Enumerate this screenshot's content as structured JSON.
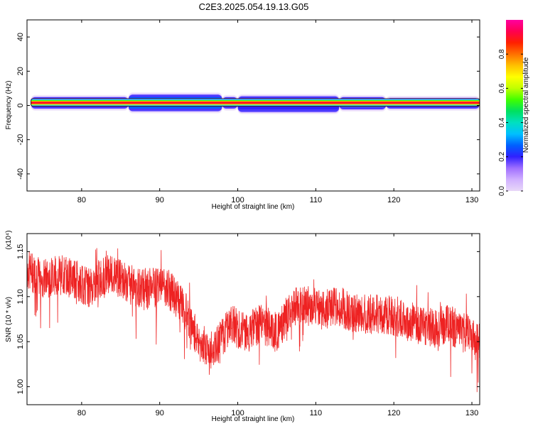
{
  "figure_title": "C2E3.2025.054.19.13.G05",
  "colors": {
    "snr_line": "#ee2222",
    "frame": "#000000",
    "colormap": [
      "#e8d8f8",
      "#d0b0ff",
      "#a070ff",
      "#3020ff",
      "#0060ff",
      "#00c0ff",
      "#00e0c0",
      "#00e060",
      "#40ff00",
      "#c0ff00",
      "#ffff00",
      "#ffc000",
      "#ff7000",
      "#ff2000",
      "#ff0050",
      "#ff00a0"
    ]
  },
  "chart_data": [
    {
      "type": "heatmap",
      "xlabel": "Height of straight line (km)",
      "ylabel": "Frequency (Hz)",
      "xlim": [
        73,
        131
      ],
      "ylim": [
        -50,
        50
      ],
      "xticks": [
        80,
        90,
        100,
        110,
        120,
        130
      ],
      "yticks": [
        -40,
        -20,
        0,
        20,
        40
      ],
      "colorbar": {
        "label": "Normalized spectral amplitude",
        "range": [
          0,
          1
        ],
        "ticks": [
          "0.0",
          "0.2",
          "0.4",
          "0.6",
          "0.8"
        ]
      },
      "band": {
        "x_range": [
          73.5,
          131
        ],
        "core_freq": [
          0.5,
          3
        ],
        "segments": [
          {
            "x0": 73.5,
            "x1": 86,
            "ymin": -1.5,
            "ymax": 4.5,
            "level": 0.9
          },
          {
            "x0": 86,
            "x1": 98,
            "ymin": -3,
            "ymax": 6,
            "level": 0.5
          },
          {
            "x0": 98,
            "x1": 100,
            "ymin": -1.5,
            "ymax": 4.5,
            "level": 0.9
          },
          {
            "x0": 100,
            "x1": 113,
            "ymin": -3.5,
            "ymax": 5,
            "level": 0.45
          },
          {
            "x0": 113,
            "x1": 119,
            "ymin": -2,
            "ymax": 4.5,
            "level": 0.8
          },
          {
            "x0": 119,
            "x1": 131,
            "ymin": -1.5,
            "ymax": 4,
            "level": 0.9
          }
        ]
      }
    },
    {
      "type": "line",
      "xlabel": "Height of straight line (km)",
      "ylabel": "SNR (10 * v/v)",
      "scale_label": "(x10⁴)",
      "xlim": [
        73,
        131
      ],
      "ylim": [
        0.98,
        1.17
      ],
      "xticks": [
        80,
        90,
        100,
        110,
        120,
        130
      ],
      "yticks": [
        "1.00",
        "1.05",
        "1.10",
        "1.15"
      ],
      "series": [
        {
          "x": [
            73,
            75,
            77,
            79,
            81,
            83,
            85,
            87,
            89,
            91,
            93,
            95,
            97,
            99,
            101,
            103,
            105,
            107,
            109,
            111,
            113,
            115,
            117,
            119,
            121,
            123,
            125,
            127,
            129,
            131
          ],
          "y": [
            1.13,
            1.12,
            1.125,
            1.12,
            1.11,
            1.125,
            1.12,
            1.11,
            1.11,
            1.11,
            1.09,
            1.05,
            1.04,
            1.07,
            1.06,
            1.07,
            1.06,
            1.09,
            1.09,
            1.085,
            1.09,
            1.08,
            1.08,
            1.08,
            1.075,
            1.07,
            1.065,
            1.07,
            1.06,
            1.05
          ]
        }
      ]
    }
  ]
}
